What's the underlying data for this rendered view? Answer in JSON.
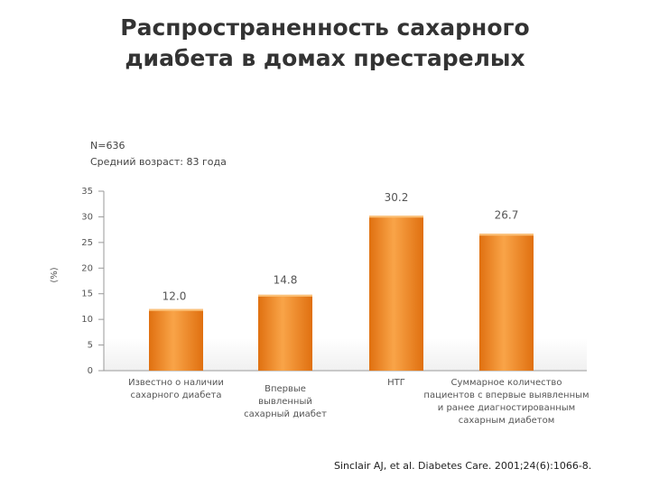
{
  "chart_data": {
    "type": "bar",
    "title": "Распространенность сахарного\nдиабета в домах престарелых",
    "notes": [
      "N=636",
      "Средний возраст: 83 года"
    ],
    "y_label": "(%)",
    "categories": [
      "Известно о наличии\nсахарного диабета",
      "Впервые\nвывленный\nсахарный диабет",
      "НТГ",
      "Суммарное количество\nпациентов с впервые выявленным\nи ранее диагностированным\nсахарным диабетом"
    ],
    "values": [
      12,
      14.8,
      30.2,
      26.7
    ],
    "value_labels": [
      "12.0",
      "14.8",
      "30.2",
      "26.7"
    ],
    "color": "#ef8a1e",
    "ylim": [
      0,
      35
    ],
    "yticks": [
      0,
      5,
      10,
      15,
      20,
      25,
      30,
      35
    ],
    "source": "Sinclair AJ, et al. Diabetes Care. 2001;24(6):1066-8."
  }
}
